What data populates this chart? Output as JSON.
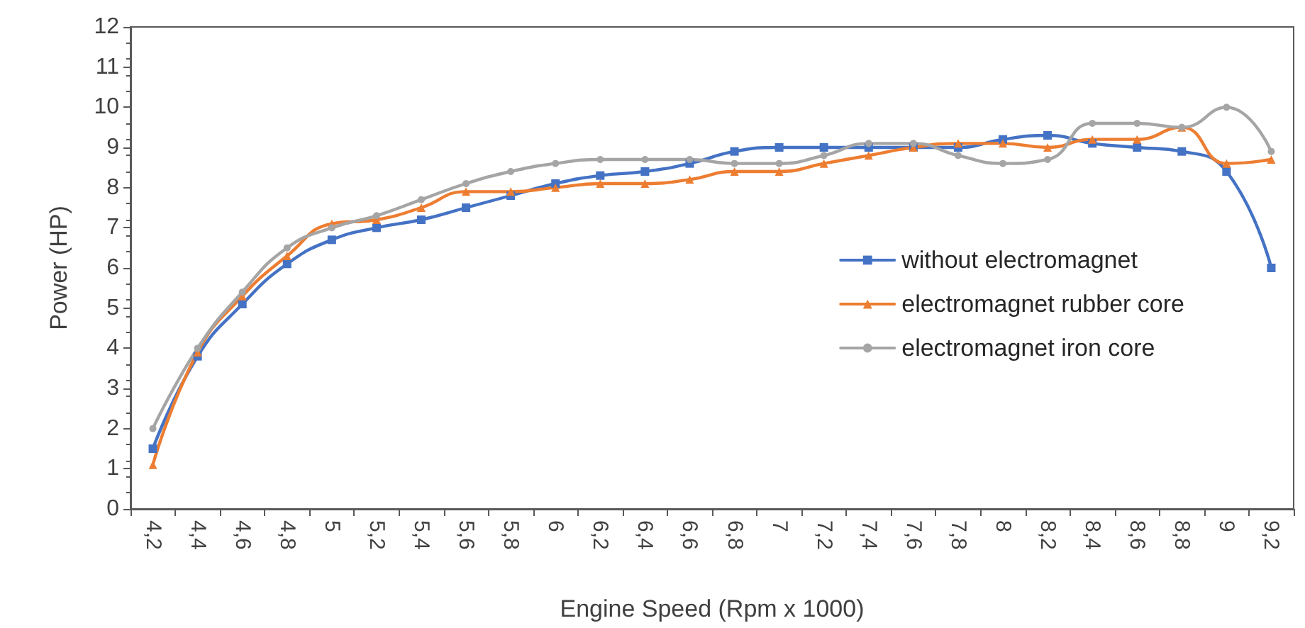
{
  "chart_data": {
    "type": "line",
    "xlabel": "Engine Speed (Rpm x 1000)",
    "ylabel": "Power (HP)",
    "categories": [
      "4,2",
      "4,4",
      "4,6",
      "4,8",
      "5",
      "5,2",
      "5,4",
      "5,6",
      "5,8",
      "6",
      "6,2",
      "6,4",
      "6,6",
      "6,8",
      "7",
      "7,2",
      "7,4",
      "7,6",
      "7,8",
      "8",
      "8,2",
      "8,4",
      "8,6",
      "8,8",
      "9",
      "9,2"
    ],
    "series": [
      {
        "name": "without electromagnet",
        "color": "#4472c4",
        "marker": "square",
        "values": [
          1.5,
          3.8,
          5.1,
          6.1,
          6.7,
          7.0,
          7.2,
          7.5,
          7.8,
          8.1,
          8.3,
          8.4,
          8.6,
          8.9,
          9.0,
          9.0,
          9.0,
          9.0,
          9.0,
          9.2,
          9.3,
          9.1,
          9.0,
          8.9,
          8.4,
          6.0
        ]
      },
      {
        "name": "electromagnet rubber core",
        "color": "#ed7d31",
        "marker": "triangle",
        "values": [
          1.1,
          3.9,
          5.3,
          6.3,
          7.1,
          7.2,
          7.5,
          7.9,
          7.9,
          8.0,
          8.1,
          8.1,
          8.2,
          8.4,
          8.4,
          8.6,
          8.8,
          9.0,
          9.1,
          9.1,
          9.0,
          9.2,
          9.2,
          9.5,
          8.6,
          8.7
        ]
      },
      {
        "name": "electromagnet iron core",
        "color": "#a5a5a5",
        "marker": "circle",
        "values": [
          2.0,
          4.0,
          5.4,
          6.5,
          7.0,
          7.3,
          7.7,
          8.1,
          8.4,
          8.6,
          8.7,
          8.7,
          8.7,
          8.6,
          8.6,
          8.8,
          9.1,
          9.1,
          8.8,
          8.6,
          8.7,
          9.6,
          9.6,
          9.5,
          10.0,
          8.9
        ]
      }
    ],
    "ylim": [
      0,
      12
    ],
    "yticks": [
      0,
      1,
      2,
      3,
      4,
      5,
      6,
      7,
      8,
      9,
      10,
      11,
      12
    ],
    "grid": false,
    "legend": "right",
    "line_style": "solid"
  }
}
